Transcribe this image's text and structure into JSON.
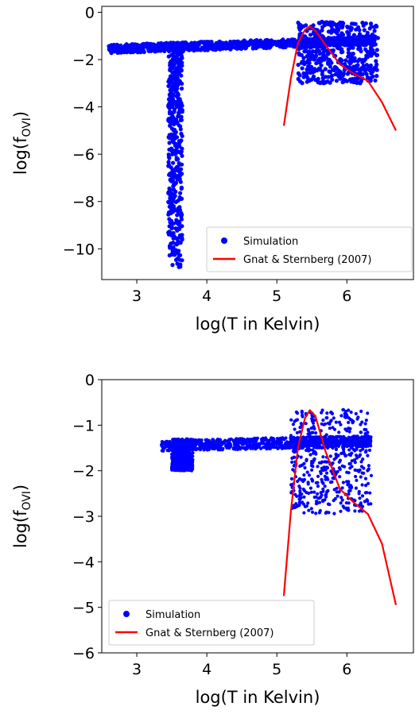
{
  "chart_data": [
    {
      "type": "scatter",
      "xlabel": "log(T in Kelvin)",
      "ylabel_main": "log(f",
      "ylabel_sub": "OVI",
      "ylabel_close": ")",
      "xlim": [
        2.5,
        6.95
      ],
      "ylim": [
        -11.3,
        0.25
      ],
      "xticks": [
        3,
        4,
        5,
        6
      ],
      "yticks": [
        0,
        -2,
        -4,
        -6,
        -8,
        -10
      ],
      "ytick_labels": [
        "0",
        "−2",
        "−4",
        "−6",
        "−8",
        "−10"
      ],
      "xtick_labels": [
        "3",
        "4",
        "5",
        "6"
      ],
      "legend": {
        "position": "lower right",
        "entries": [
          "Simulation",
          "Gnat & Sternberg (2007)"
        ]
      },
      "series": [
        {
          "name": "Simulation",
          "kind": "scatter",
          "color": "#0000ff",
          "regions": [
            {
              "x": [
                2.6,
                6.4
              ],
              "y_center": [
                -1.55,
                -1.2
              ],
              "y_spread": 0.18
            },
            {
              "x": [
                3.45,
                3.65
              ],
              "y_min": -10.8,
              "y_max": -1.3
            },
            {
              "x": [
                5.3,
                6.45
              ],
              "y_min": -3.0,
              "y_max": -0.4
            }
          ]
        },
        {
          "name": "Gnat & Sternberg (2007)",
          "kind": "line",
          "color": "#ff0000",
          "x": [
            5.1,
            5.2,
            5.3,
            5.4,
            5.47,
            5.55,
            5.7,
            5.9,
            6.1,
            6.3,
            6.5,
            6.7
          ],
          "y": [
            -4.8,
            -2.8,
            -1.3,
            -0.75,
            -0.6,
            -0.78,
            -1.4,
            -2.2,
            -2.6,
            -2.9,
            -3.8,
            -5.0
          ]
        }
      ]
    },
    {
      "type": "scatter",
      "xlabel": "log(T in Kelvin)",
      "ylabel_main": "log(f",
      "ylabel_sub": "OVI",
      "ylabel_close": ")",
      "xlim": [
        2.5,
        6.95
      ],
      "ylim": [
        -6.0,
        0.0
      ],
      "xticks": [
        3,
        4,
        5,
        6
      ],
      "yticks": [
        0,
        -1,
        -2,
        -3,
        -4,
        -5,
        -6
      ],
      "ytick_labels": [
        "0",
        "−1",
        "−2",
        "−3",
        "−4",
        "−5",
        "−6"
      ],
      "xtick_labels": [
        "3",
        "4",
        "5",
        "6"
      ],
      "legend": {
        "position": "lower left",
        "entries": [
          "Simulation",
          "Gnat & Sternberg (2007)"
        ]
      },
      "series": [
        {
          "name": "Simulation",
          "kind": "scatter",
          "color": "#0000ff",
          "regions": [
            {
              "x": [
                3.35,
                6.35
              ],
              "y_center": [
                -1.45,
                -1.35
              ],
              "y_spread": 0.12
            },
            {
              "x": [
                3.5,
                3.8
              ],
              "y_min": -2.0,
              "y_max": -1.3
            },
            {
              "x": [
                5.2,
                6.35
              ],
              "y_min": -2.95,
              "y_max": -0.65
            }
          ]
        },
        {
          "name": "Gnat & Sternberg (2007)",
          "kind": "line",
          "color": "#ff0000",
          "x": [
            5.1,
            5.2,
            5.3,
            5.4,
            5.47,
            5.55,
            5.7,
            5.9,
            6.1,
            6.3,
            6.5,
            6.7
          ],
          "y": [
            -4.75,
            -2.9,
            -1.5,
            -0.85,
            -0.67,
            -0.8,
            -1.6,
            -2.4,
            -2.7,
            -2.95,
            -3.6,
            -4.95
          ]
        }
      ]
    }
  ]
}
